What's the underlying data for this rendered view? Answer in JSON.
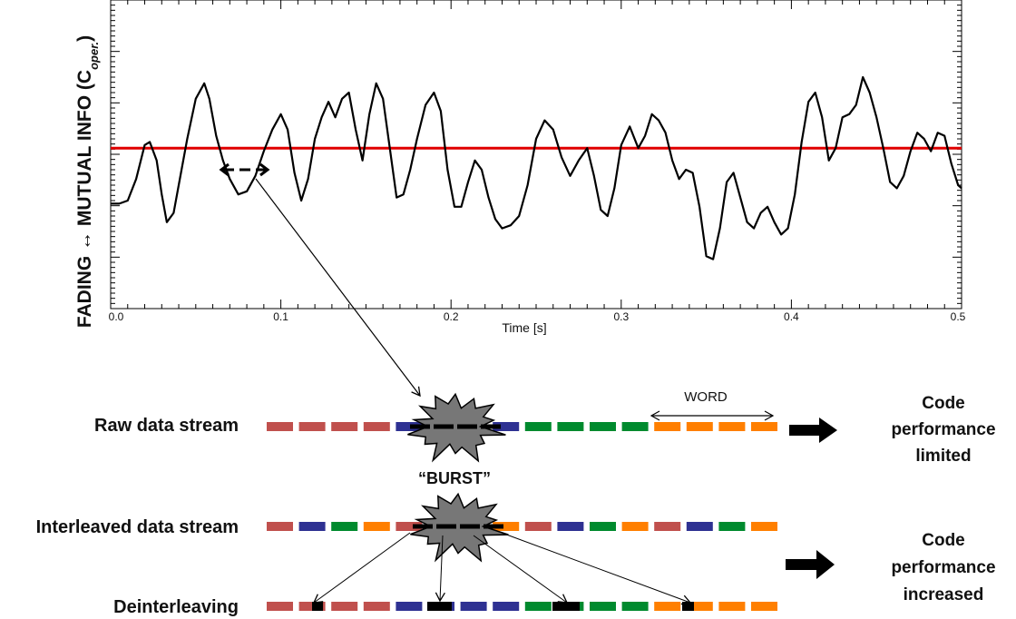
{
  "chart_data": {
    "type": "line",
    "title": "",
    "ylabel_main": "FADING ↔ MUTUAL INFO (C",
    "ylabel_sub": "oper.",
    "ylabel_close": ")",
    "xlabel": "Time [s]",
    "xlim": [
      0.0,
      0.5
    ],
    "ylim": [
      0,
      1
    ],
    "xticks": [
      "0.0",
      "0.1",
      "0.2",
      "0.3",
      "0.4",
      "0.5"
    ],
    "threshold": 0.52,
    "series": [
      {
        "values": [
          [
            0.0,
            0.34
          ],
          [
            0.005,
            0.34
          ],
          [
            0.01,
            0.35
          ],
          [
            0.015,
            0.42
          ],
          [
            0.02,
            0.53
          ],
          [
            0.023,
            0.54
          ],
          [
            0.027,
            0.48
          ],
          [
            0.03,
            0.37
          ],
          [
            0.033,
            0.28
          ],
          [
            0.037,
            0.31
          ],
          [
            0.04,
            0.4
          ],
          [
            0.045,
            0.55
          ],
          [
            0.05,
            0.68
          ],
          [
            0.055,
            0.73
          ],
          [
            0.058,
            0.68
          ],
          [
            0.062,
            0.56
          ],
          [
            0.066,
            0.48
          ],
          [
            0.07,
            0.42
          ],
          [
            0.075,
            0.37
          ],
          [
            0.08,
            0.38
          ],
          [
            0.085,
            0.43
          ],
          [
            0.09,
            0.51
          ],
          [
            0.095,
            0.58
          ],
          [
            0.1,
            0.63
          ],
          [
            0.104,
            0.58
          ],
          [
            0.108,
            0.44
          ],
          [
            0.112,
            0.35
          ],
          [
            0.116,
            0.42
          ],
          [
            0.12,
            0.55
          ],
          [
            0.124,
            0.62
          ],
          [
            0.128,
            0.67
          ],
          [
            0.132,
            0.62
          ],
          [
            0.136,
            0.68
          ],
          [
            0.14,
            0.7
          ],
          [
            0.144,
            0.58
          ],
          [
            0.148,
            0.48
          ],
          [
            0.152,
            0.63
          ],
          [
            0.156,
            0.73
          ],
          [
            0.16,
            0.68
          ],
          [
            0.164,
            0.52
          ],
          [
            0.168,
            0.36
          ],
          [
            0.172,
            0.37
          ],
          [
            0.176,
            0.45
          ],
          [
            0.18,
            0.55
          ],
          [
            0.185,
            0.66
          ],
          [
            0.19,
            0.7
          ],
          [
            0.194,
            0.64
          ],
          [
            0.198,
            0.45
          ],
          [
            0.202,
            0.33
          ],
          [
            0.206,
            0.33
          ],
          [
            0.21,
            0.41
          ],
          [
            0.214,
            0.48
          ],
          [
            0.218,
            0.45
          ],
          [
            0.222,
            0.36
          ],
          [
            0.226,
            0.29
          ],
          [
            0.23,
            0.26
          ],
          [
            0.235,
            0.27
          ],
          [
            0.24,
            0.3
          ],
          [
            0.245,
            0.4
          ],
          [
            0.25,
            0.55
          ],
          [
            0.255,
            0.61
          ],
          [
            0.26,
            0.58
          ],
          [
            0.265,
            0.49
          ],
          [
            0.27,
            0.43
          ],
          [
            0.275,
            0.48
          ],
          [
            0.28,
            0.52
          ],
          [
            0.284,
            0.43
          ],
          [
            0.288,
            0.32
          ],
          [
            0.292,
            0.3
          ],
          [
            0.296,
            0.39
          ],
          [
            0.3,
            0.53
          ],
          [
            0.305,
            0.59
          ],
          [
            0.31,
            0.52
          ],
          [
            0.314,
            0.56
          ],
          [
            0.318,
            0.63
          ],
          [
            0.322,
            0.61
          ],
          [
            0.326,
            0.57
          ],
          [
            0.33,
            0.48
          ],
          [
            0.334,
            0.42
          ],
          [
            0.338,
            0.45
          ],
          [
            0.342,
            0.44
          ],
          [
            0.346,
            0.33
          ],
          [
            0.35,
            0.17
          ],
          [
            0.354,
            0.16
          ],
          [
            0.358,
            0.26
          ],
          [
            0.362,
            0.41
          ],
          [
            0.366,
            0.44
          ],
          [
            0.37,
            0.36
          ],
          [
            0.374,
            0.28
          ],
          [
            0.378,
            0.26
          ],
          [
            0.382,
            0.31
          ],
          [
            0.386,
            0.33
          ],
          [
            0.39,
            0.28
          ],
          [
            0.394,
            0.24
          ],
          [
            0.398,
            0.26
          ],
          [
            0.402,
            0.37
          ],
          [
            0.406,
            0.54
          ],
          [
            0.41,
            0.67
          ],
          [
            0.414,
            0.7
          ],
          [
            0.418,
            0.62
          ],
          [
            0.422,
            0.48
          ],
          [
            0.426,
            0.52
          ],
          [
            0.43,
            0.62
          ],
          [
            0.434,
            0.63
          ],
          [
            0.438,
            0.66
          ],
          [
            0.442,
            0.75
          ],
          [
            0.446,
            0.7
          ],
          [
            0.45,
            0.62
          ],
          [
            0.454,
            0.52
          ],
          [
            0.458,
            0.41
          ],
          [
            0.462,
            0.39
          ],
          [
            0.466,
            0.43
          ],
          [
            0.47,
            0.51
          ],
          [
            0.474,
            0.57
          ],
          [
            0.478,
            0.55
          ],
          [
            0.482,
            0.51
          ],
          [
            0.486,
            0.57
          ],
          [
            0.49,
            0.56
          ],
          [
            0.494,
            0.47
          ],
          [
            0.498,
            0.4
          ],
          [
            0.5,
            0.39
          ]
        ]
      }
    ]
  },
  "annotations": {
    "word": "WORD",
    "burst": "“BURST”"
  },
  "streams": {
    "raw": {
      "label": "Raw data stream",
      "colors": [
        "#c0504d",
        "#c0504d",
        "#c0504d",
        "#c0504d",
        "#2e3192",
        "#2e3192",
        "#2e3192",
        "#2e3192",
        "#008a2e",
        "#008a2e",
        "#008a2e",
        "#008a2e",
        "#ff7f00",
        "#ff7f00",
        "#ff7f00",
        "#ff7f00"
      ]
    },
    "interleaved": {
      "label": "Interleaved  data stream",
      "colors": [
        "#c0504d",
        "#2e3192",
        "#008a2e",
        "#ff7f00",
        "#c0504d",
        "#2e3192",
        "#008a2e",
        "#ff7f00",
        "#c0504d",
        "#2e3192",
        "#008a2e",
        "#ff7f00",
        "#c0504d",
        "#2e3192",
        "#008a2e",
        "#ff7f00"
      ]
    },
    "deinterleaving": {
      "label": "Deinterleaving",
      "colors": [
        "#c0504d",
        "#c0504d",
        "#c0504d",
        "#c0504d",
        "#2e3192",
        "#2e3192",
        "#2e3192",
        "#2e3192",
        "#008a2e",
        "#008a2e",
        "#008a2e",
        "#008a2e",
        "#ff7f00",
        "#ff7f00",
        "#ff7f00",
        "#ff7f00"
      ]
    }
  },
  "results": {
    "limited": [
      "Code",
      "performance",
      "limited"
    ],
    "increased": [
      "Code",
      "performance",
      "increased"
    ]
  },
  "colors": {
    "curve": "#000000",
    "threshold": "#e00000",
    "burst_fill": "#777777",
    "burst_segment": "#000000"
  }
}
